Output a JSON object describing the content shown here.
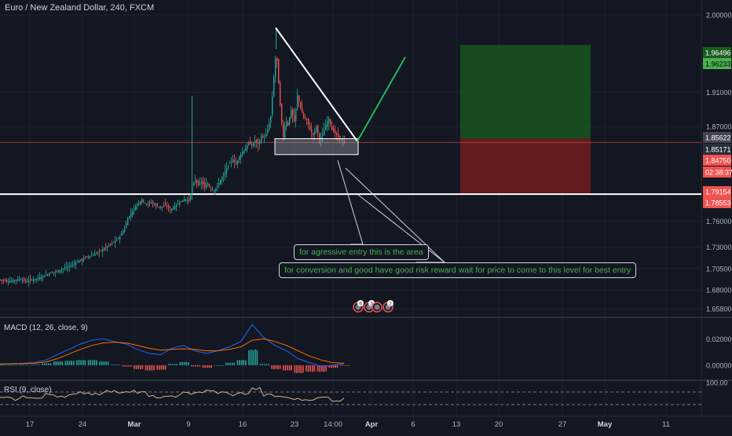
{
  "header": {
    "symbol_title": "Euro / New Zealand Dollar, 240, FXCM"
  },
  "colors": {
    "background": "#131722",
    "grid": "#1e222d",
    "up_candle": "#26a69a",
    "down_candle": "#ef5350",
    "macd_line": "#2962ff",
    "signal_line": "#ff6d00",
    "rsi_line": "#d1b48c",
    "annotation_text": "#4caf50",
    "target_zone": "#1b5e20",
    "stop_zone": "#7f1d1d",
    "current_price_line": "#ef5350"
  },
  "annotations": {
    "note1": "for agressive entry  this is the area",
    "note2": "for conversion and good have good risk reward wait for price to come to this level for best entry",
    "event_badges": [
      "6",
      "3",
      "",
      "2"
    ]
  },
  "price_axis": {
    "ticks": [
      "2.00000",
      "1.91000",
      "1.87000",
      "1.76000",
      "1.73000",
      "1.70500",
      "1.68000",
      "1.65800"
    ],
    "badges": [
      {
        "label": "1.96496",
        "bg": "#1b5e20",
        "fg": "#ffffff"
      },
      {
        "label": "1.96233",
        "bg": "#4caf50",
        "fg": "#000000"
      },
      {
        "label": "1.85622",
        "bg": "#434651",
        "fg": "#ffffff"
      },
      {
        "label": "1.85171",
        "bg": "#2a2e39",
        "fg": "#ffffff"
      },
      {
        "label": "1.84750",
        "bg": "#ef5350",
        "fg": "#ffffff"
      },
      {
        "label": "02:38:37",
        "bg": "#ef5350",
        "fg": "#ffffff"
      },
      {
        "label": "1.79154",
        "bg": "#ef5350",
        "fg": "#ffffff"
      },
      {
        "label": "1.78553",
        "bg": "#ef5350",
        "fg": "#ffffff"
      }
    ]
  },
  "macd_axis": {
    "label": "MACD (12, 26, close, 9)",
    "ticks": [
      "0.02000",
      "0.00000"
    ]
  },
  "rsi_axis": {
    "label": "RSI (9, close)",
    "ticks": [
      "100.00"
    ]
  },
  "time_axis": {
    "ticks": [
      "17",
      "24",
      "Mar",
      "9",
      "16",
      "23",
      "14:00",
      "Apr",
      "6",
      "13",
      "20",
      "27",
      "May",
      "11"
    ],
    "bold": [
      "Mar",
      "Apr",
      "May"
    ]
  },
  "chart_data": [
    {
      "type": "candlestick",
      "title": "Euro / New Zealand Dollar, 240, FXCM",
      "x_range": [
        "17",
        "14:00"
      ],
      "ylim": [
        1.65,
        2.01
      ],
      "close_path": [
        [
          0,
          1.692
        ],
        [
          8,
          1.69
        ],
        [
          16,
          1.691
        ],
        [
          24,
          1.693
        ],
        [
          32,
          1.69
        ],
        [
          40,
          1.692
        ],
        [
          48,
          1.694
        ],
        [
          56,
          1.697
        ],
        [
          64,
          1.7
        ],
        [
          72,
          1.702
        ],
        [
          80,
          1.705
        ],
        [
          88,
          1.708
        ],
        [
          96,
          1.712
        ],
        [
          104,
          1.716
        ],
        [
          112,
          1.719
        ],
        [
          120,
          1.722
        ],
        [
          128,
          1.726
        ],
        [
          136,
          1.731
        ],
        [
          144,
          1.736
        ],
        [
          152,
          1.742
        ],
        [
          158,
          1.752
        ],
        [
          162,
          1.763
        ],
        [
          168,
          1.772
        ],
        [
          174,
          1.78
        ],
        [
          180,
          1.785
        ],
        [
          186,
          1.78
        ],
        [
          192,
          1.782
        ],
        [
          198,
          1.778
        ],
        [
          204,
          1.776
        ],
        [
          210,
          1.779
        ],
        [
          216,
          1.773
        ],
        [
          222,
          1.778
        ],
        [
          228,
          1.782
        ],
        [
          234,
          1.786
        ],
        [
          240,
          1.784
        ],
        [
          244,
          1.8
        ],
        [
          248,
          1.808
        ],
        [
          252,
          1.802
        ],
        [
          256,
          1.806
        ],
        [
          260,
          1.8
        ],
        [
          264,
          1.803
        ],
        [
          268,
          1.797
        ],
        [
          272,
          1.796
        ],
        [
          276,
          1.801
        ],
        [
          280,
          1.808
        ],
        [
          284,
          1.814
        ],
        [
          288,
          1.822
        ],
        [
          292,
          1.828
        ],
        [
          296,
          1.832
        ],
        [
          300,
          1.826
        ],
        [
          304,
          1.835
        ],
        [
          308,
          1.84
        ],
        [
          312,
          1.845
        ],
        [
          316,
          1.851
        ],
        [
          320,
          1.848
        ],
        [
          324,
          1.854
        ],
        [
          328,
          1.85
        ],
        [
          332,
          1.858
        ],
        [
          336,
          1.857
        ],
        [
          340,
          1.866
        ],
        [
          344,
          1.882
        ],
        [
          348,
          1.928
        ],
        [
          351,
          1.96
        ],
        [
          354,
          1.92
        ],
        [
          357,
          1.882
        ],
        [
          360,
          1.858
        ],
        [
          363,
          1.878
        ],
        [
          366,
          1.872
        ],
        [
          370,
          1.89
        ],
        [
          374,
          1.876
        ],
        [
          378,
          1.906
        ],
        [
          382,
          1.892
        ],
        [
          386,
          1.88
        ],
        [
          390,
          1.878
        ],
        [
          394,
          1.866
        ],
        [
          398,
          1.86
        ],
        [
          402,
          1.87
        ],
        [
          406,
          1.855
        ],
        [
          410,
          1.861
        ],
        [
          414,
          1.872
        ],
        [
          418,
          1.88
        ],
        [
          422,
          1.866
        ],
        [
          426,
          1.862
        ],
        [
          430,
          1.858
        ],
        [
          434,
          1.854
        ],
        [
          438,
          1.852
        ]
      ],
      "spike_highs": [
        [
          244,
          1.906
        ],
        [
          351,
          1.985
        ],
        [
          378,
          1.91
        ]
      ],
      "horizontal_levels": {
        "current_price": 1.85171,
        "support": 1.79154
      },
      "trendline": {
        "from": [
          351,
          1.985
        ],
        "to": [
          455,
          1.853
        ]
      },
      "entry_box": {
        "x_from": 350,
        "x_to": 456,
        "y_low": 1.8375,
        "y_high": 1.856
      },
      "projection": {
        "from": [
          455,
          1.853
        ],
        "to": [
          516,
          1.951
        ]
      },
      "position_tool": {
        "x_from": 586,
        "x_to": 752,
        "target": 1.96496,
        "entry": 1.85622,
        "stop": 1.79154
      }
    },
    {
      "type": "line",
      "title": "MACD (12, 26, close, 9)",
      "ylim": [
        -0.009,
        0.034
      ],
      "series": [
        {
          "name": "MACD",
          "values": [
            0.001,
            0.0012,
            0.0015,
            0.002,
            0.004,
            0.008,
            0.012,
            0.016,
            0.019,
            0.02,
            0.018,
            0.016,
            0.012,
            0.009,
            0.008,
            0.013,
            0.015,
            0.011,
            0.009,
            0.011,
            0.014,
            0.018,
            0.031,
            0.021,
            0.015,
            0.011,
            0.005,
            0.002,
            -0.001,
            0.0,
            0.001
          ]
        },
        {
          "name": "Signal",
          "values": [
            0.0008,
            0.001,
            0.0012,
            0.0015,
            0.0025,
            0.005,
            0.0085,
            0.012,
            0.015,
            0.017,
            0.0175,
            0.017,
            0.015,
            0.013,
            0.0115,
            0.012,
            0.0125,
            0.012,
            0.011,
            0.011,
            0.012,
            0.014,
            0.019,
            0.02,
            0.018,
            0.015,
            0.011,
            0.007,
            0.004,
            0.002,
            0.0015
          ]
        }
      ],
      "histogram": [
        0.0002,
        0.0002,
        0.0003,
        0.0005,
        0.0015,
        0.003,
        0.0035,
        0.004,
        0.004,
        0.003,
        0.0005,
        -0.001,
        -0.003,
        -0.004,
        -0.0035,
        0.001,
        0.0025,
        -0.001,
        -0.002,
        0.0,
        0.002,
        0.004,
        0.012,
        0.001,
        -0.003,
        -0.004,
        -0.006,
        -0.005,
        -0.005,
        -0.002,
        -0.0005
      ]
    },
    {
      "type": "line",
      "title": "RSI (9, close)",
      "ylim": [
        0,
        100
      ],
      "levels": [
        70,
        30
      ],
      "series": [
        {
          "name": "RSI",
          "values": [
            50,
            47,
            55,
            50,
            62,
            58,
            60,
            68,
            65,
            72,
            70,
            74,
            68,
            55,
            52,
            58,
            66,
            70,
            72,
            68,
            62,
            66,
            80,
            60,
            56,
            50,
            46,
            48,
            52,
            44,
            47
          ]
        }
      ]
    }
  ]
}
